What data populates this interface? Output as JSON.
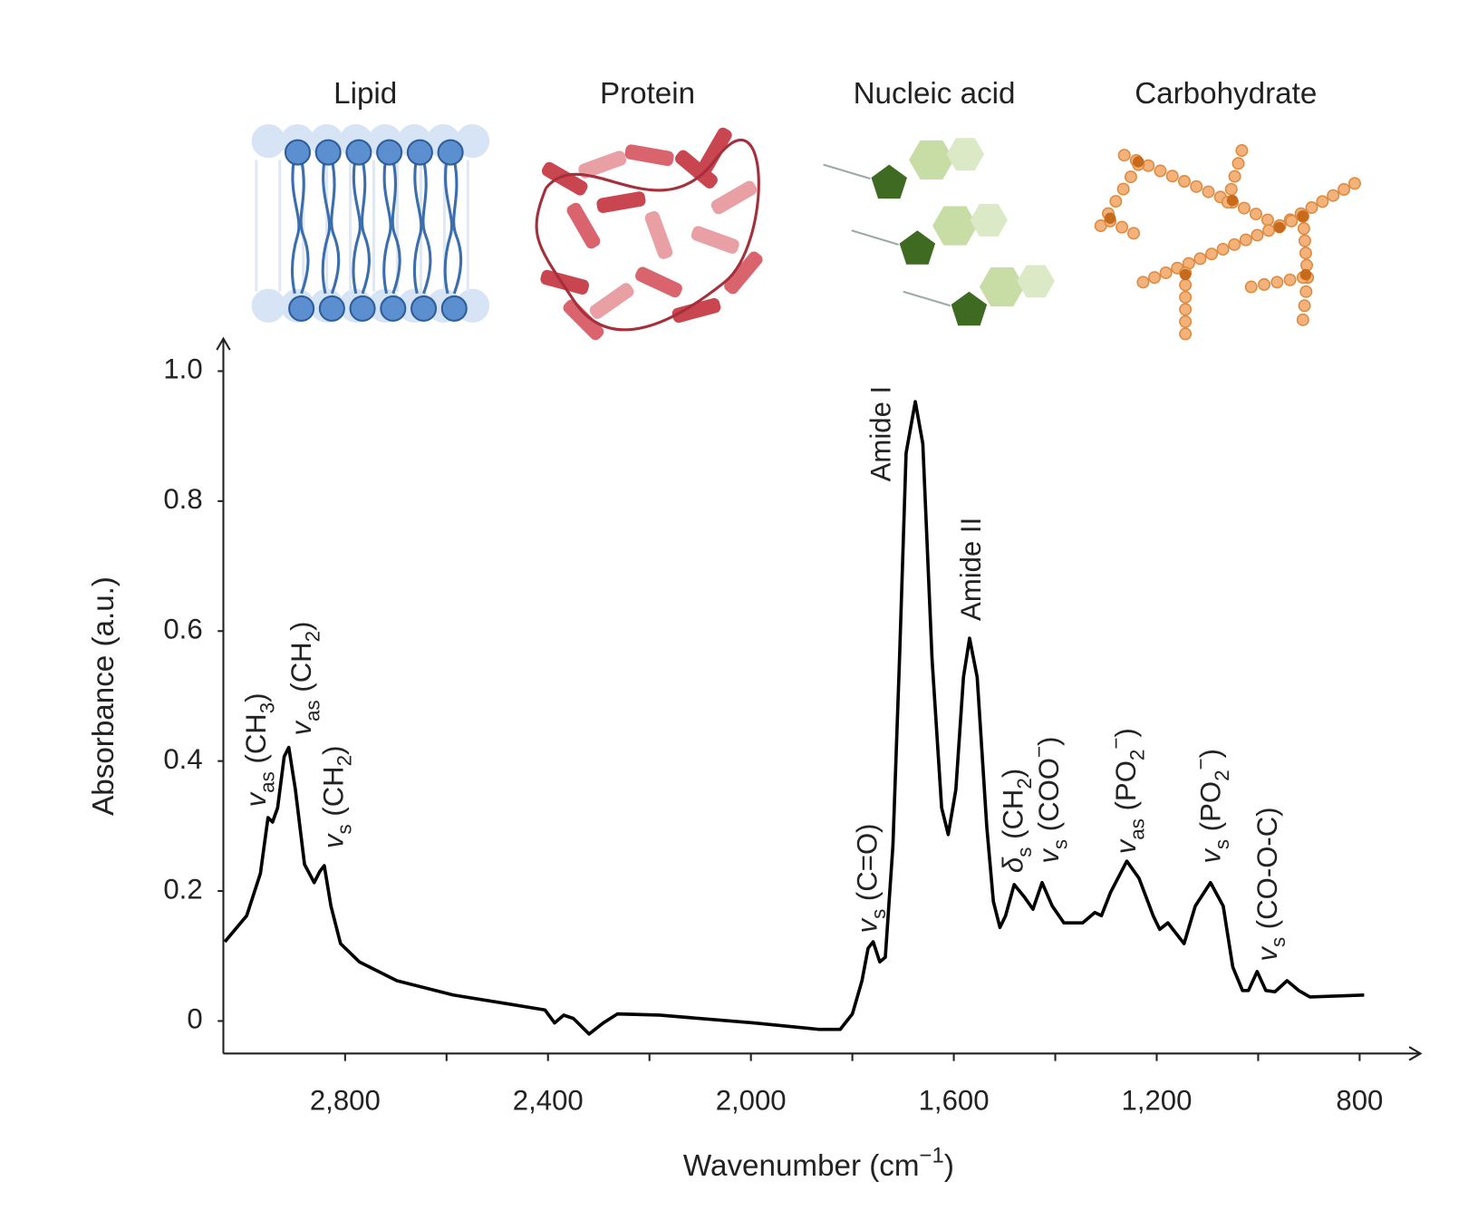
{
  "chart_data": {
    "type": "line",
    "panel_labels": [
      "Lipid",
      "Protein",
      "Nucleic acid",
      "Carbohydrate"
    ],
    "y_label": "Absorbance (a.u.)",
    "x_label": {
      "parts": [
        {
          "text": "Wavenumber (cm"
        },
        {
          "text": "−1",
          "style": "sup"
        },
        {
          "text": ")"
        }
      ]
    },
    "color": "#000000",
    "x": [
      3037,
      2994,
      2967,
      2952,
      2943,
      2933,
      2920,
      2911,
      2898,
      2880,
      2861,
      2850,
      2841,
      2828,
      2809,
      2772,
      2698,
      2587,
      2476,
      2406,
      2387,
      2369,
      2350,
      2319,
      2291,
      2263,
      2180,
      1994,
      1865,
      1824,
      1800,
      1781,
      1769,
      1759,
      1746,
      1735,
      1720,
      1707,
      1694,
      1676,
      1661,
      1643,
      1624,
      1611,
      1596,
      1581,
      1569,
      1554,
      1535,
      1522,
      1509,
      1498,
      1481,
      1461,
      1444,
      1426,
      1406,
      1383,
      1346,
      1322,
      1309,
      1291,
      1259,
      1235,
      1207,
      1194,
      1178,
      1161,
      1146,
      1124,
      1094,
      1069,
      1050,
      1031,
      1019,
      1002,
      985,
      967,
      943,
      920,
      898,
      791
    ],
    "values": [
      0.122,
      0.162,
      0.227,
      0.313,
      0.306,
      0.328,
      0.407,
      0.421,
      0.356,
      0.241,
      0.213,
      0.23,
      0.239,
      0.177,
      0.119,
      0.091,
      0.062,
      0.04,
      0.026,
      0.017,
      -0.003,
      0.009,
      0.004,
      -0.02,
      -0.003,
      0.011,
      0.009,
      -0.003,
      -0.013,
      -0.013,
      0.011,
      0.062,
      0.112,
      0.122,
      0.091,
      0.098,
      0.27,
      0.557,
      0.874,
      0.953,
      0.888,
      0.557,
      0.328,
      0.287,
      0.356,
      0.529,
      0.589,
      0.529,
      0.299,
      0.184,
      0.144,
      0.162,
      0.21,
      0.191,
      0.172,
      0.213,
      0.177,
      0.151,
      0.151,
      0.167,
      0.162,
      0.198,
      0.246,
      0.22,
      0.162,
      0.141,
      0.151,
      0.134,
      0.119,
      0.177,
      0.213,
      0.177,
      0.083,
      0.047,
      0.047,
      0.076,
      0.047,
      0.045,
      0.062,
      0.047,
      0.037,
      0.04
    ],
    "xlim": [
      3040,
      680
    ],
    "ylim": [
      -0.05,
      1.05
    ],
    "xticks": [
      {
        "value": 2800,
        "label": "2,800"
      },
      {
        "value": 2400,
        "label": "2,400"
      },
      {
        "value": 2000,
        "label": "2,000"
      },
      {
        "value": 1600,
        "label": "1,600"
      },
      {
        "value": 1200,
        "label": "1,200"
      },
      800
    ],
    "xminor_ticks": [
      2600,
      2200,
      1800,
      1400,
      1000
    ],
    "yticks": [
      0,
      0.2,
      0.4,
      0.6,
      0.8,
      {
        "value": 1,
        "label": "1.0"
      }
    ],
    "annotations": [
      {
        "color": "#4f8fcb",
        "parts": [
          {
            "text": "v",
            "style": "italic"
          },
          {
            "text": "as",
            "style": "sub"
          },
          {
            "text": " (CH"
          },
          {
            "text": "3",
            "style": "sub"
          },
          {
            "text": ")"
          }
        ]
      },
      {
        "color": "#4f8fcb",
        "parts": [
          {
            "text": "v",
            "style": "italic"
          },
          {
            "text": "as",
            "style": "sub"
          },
          {
            "text": " (CH"
          },
          {
            "text": "2",
            "style": "sub"
          },
          {
            "text": ")"
          }
        ]
      },
      {
        "color": "#4f8fcb",
        "parts": [
          {
            "text": "v",
            "style": "italic"
          },
          {
            "text": "s",
            "style": "sub"
          },
          {
            "text": " (CH"
          },
          {
            "text": "2",
            "style": "sub"
          },
          {
            "text": ")"
          }
        ]
      },
      {
        "color": "#4f8fcb",
        "parts": [
          {
            "text": "v",
            "style": "italic"
          },
          {
            "text": "s",
            "style": "sub"
          },
          {
            "text": " (C=O)"
          }
        ]
      },
      {
        "color": "#9e2b37",
        "parts": [
          {
            "text": "Amide I"
          }
        ]
      },
      {
        "color": "#9e2b37",
        "parts": [
          {
            "text": "Amide II"
          }
        ]
      },
      {
        "color": "#4f8fcb",
        "parts": [
          {
            "text": "δ",
            "style": "italic"
          },
          {
            "text": "s",
            "style": "sub"
          },
          {
            "text": " (CH"
          },
          {
            "text": "2",
            "style": "sub"
          },
          {
            "text": ")"
          }
        ]
      },
      {
        "color": "#9e2b37",
        "parts": [
          {
            "text": "v",
            "style": "italic"
          },
          {
            "text": "s",
            "style": "sub"
          },
          {
            "text": " (COO"
          },
          {
            "text": "−",
            "style": "sup"
          },
          {
            "text": ")"
          }
        ]
      },
      {
        "color": "#7ea83b",
        "parts": [
          {
            "text": "v",
            "style": "italic"
          },
          {
            "text": "as",
            "style": "sub"
          },
          {
            "text": " (PO"
          },
          {
            "text": "2",
            "style": "sub"
          },
          {
            "text": "−",
            "style": "sup"
          },
          {
            "text": ")"
          }
        ]
      },
      {
        "color": "#7ea83b",
        "parts": [
          {
            "text": "v",
            "style": "italic"
          },
          {
            "text": "s",
            "style": "sub"
          },
          {
            "text": " (PO"
          },
          {
            "text": "2",
            "style": "sub"
          },
          {
            "text": "−",
            "style": "sup"
          },
          {
            "text": ")"
          }
        ]
      },
      {
        "color": "#e0812a",
        "parts": [
          {
            "text": "v",
            "style": "italic"
          },
          {
            "text": "s",
            "style": "sub"
          },
          {
            "text": " (CO-O-C)"
          }
        ]
      }
    ]
  }
}
